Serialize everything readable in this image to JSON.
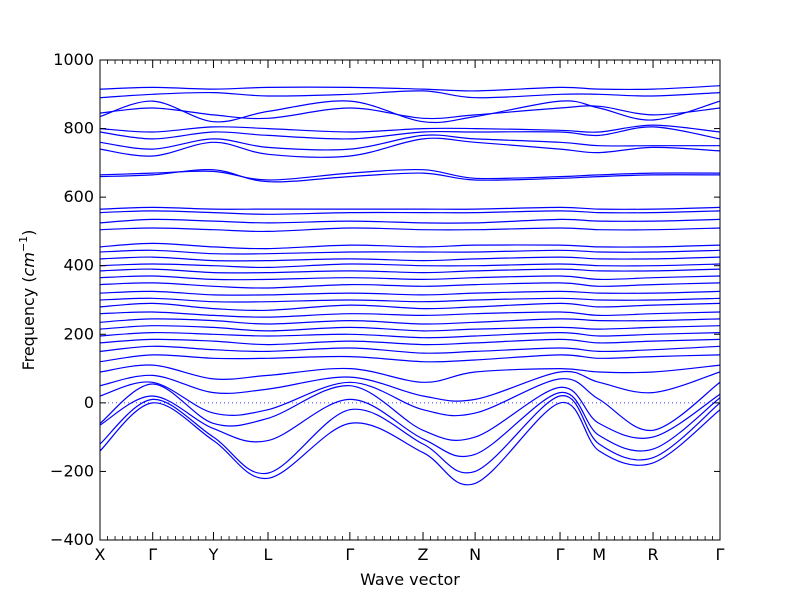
{
  "chart_data": {
    "type": "line",
    "title": "",
    "xlabel": "Wave vector",
    "ylabel_text": "Frequency (",
    "ylabel_unit_base": "cm",
    "ylabel_unit_exp": "−1",
    "ylabel_close": ")",
    "ylim": [
      -400,
      1000
    ],
    "yticks": [
      -400,
      -200,
      0,
      200,
      400,
      600,
      800,
      1000
    ],
    "x_range": [
      0,
      1
    ],
    "high_symmetry_points": [
      {
        "label": "X",
        "x": 0.0
      },
      {
        "label": "Γ",
        "x": 0.085
      },
      {
        "label": "Y",
        "x": 0.183
      },
      {
        "label": "L",
        "x": 0.271
      },
      {
        "label": "Γ",
        "x": 0.403
      },
      {
        "label": "Z",
        "x": 0.521
      },
      {
        "label": "N",
        "x": 0.605
      },
      {
        "label": "Γ",
        "x": 0.742
      },
      {
        "label": "M",
        "x": 0.805
      },
      {
        "label": "R",
        "x": 0.892
      },
      {
        "label": "Γ",
        "x": 1.0
      }
    ],
    "zero_line": {
      "value": 0,
      "style": "dotted"
    },
    "grid": false,
    "line_color": "#0000ff",
    "bands": [
      {
        "x": [
          0,
          0.085,
          0.183,
          0.271,
          0.403,
          0.521,
          0.605,
          0.742,
          0.805,
          0.892,
          1
        ],
        "y": [
          -140,
          0,
          -110,
          -220,
          -60,
          -145,
          -235,
          0,
          -140,
          -175,
          -20
        ]
      },
      {
        "x": [
          0,
          0.085,
          0.183,
          0.271,
          0.403,
          0.521,
          0.605,
          0.742,
          0.805,
          0.892,
          1
        ],
        "y": [
          -120,
          10,
          -100,
          -205,
          -20,
          -120,
          -200,
          20,
          -120,
          -160,
          0
        ]
      },
      {
        "x": [
          0,
          0.085,
          0.183,
          0.271,
          0.403,
          0.521,
          0.605,
          0.742,
          0.805,
          0.892,
          1
        ],
        "y": [
          -65,
          20,
          -75,
          -110,
          10,
          -105,
          -150,
          30,
          -95,
          -135,
          15
        ]
      },
      {
        "x": [
          0,
          0.085,
          0.183,
          0.271,
          0.403,
          0.521,
          0.605,
          0.742,
          0.805,
          0.892,
          1
        ],
        "y": [
          -60,
          55,
          -60,
          -45,
          50,
          -80,
          -100,
          45,
          -60,
          -100,
          25
        ]
      },
      {
        "x": [
          0,
          0.085,
          0.183,
          0.271,
          0.403,
          0.521,
          0.605,
          0.742,
          0.805,
          0.892,
          1
        ],
        "y": [
          20,
          60,
          -30,
          -20,
          60,
          -20,
          -30,
          70,
          10,
          -80,
          60
        ]
      },
      {
        "x": [
          0,
          0.085,
          0.183,
          0.271,
          0.403,
          0.521,
          0.605,
          0.742,
          0.805,
          0.892,
          1
        ],
        "y": [
          50,
          80,
          30,
          40,
          75,
          20,
          10,
          90,
          60,
          30,
          90
        ]
      },
      {
        "x": [
          0,
          0.085,
          0.183,
          0.271,
          0.403,
          0.521,
          0.605,
          0.742,
          0.805,
          0.892,
          1
        ],
        "y": [
          90,
          110,
          70,
          80,
          100,
          60,
          90,
          100,
          90,
          90,
          110
        ]
      },
      {
        "x": [
          0,
          0.085,
          0.183,
          0.271,
          0.403,
          0.521,
          0.605,
          0.742,
          0.805,
          0.892,
          1
        ],
        "y": [
          120,
          140,
          130,
          130,
          135,
          120,
          125,
          140,
          130,
          135,
          140
        ]
      },
      {
        "x": [
          0,
          0.085,
          0.183,
          0.271,
          0.403,
          0.521,
          0.605,
          0.742,
          0.805,
          0.892,
          1
        ],
        "y": [
          150,
          165,
          155,
          150,
          160,
          145,
          150,
          160,
          150,
          155,
          165
        ]
      },
      {
        "x": [
          0,
          0.085,
          0.183,
          0.271,
          0.403,
          0.521,
          0.605,
          0.742,
          0.805,
          0.892,
          1
        ],
        "y": [
          175,
          185,
          180,
          170,
          180,
          170,
          175,
          185,
          175,
          180,
          185
        ]
      },
      {
        "x": [
          0,
          0.085,
          0.183,
          0.271,
          0.403,
          0.521,
          0.605,
          0.742,
          0.805,
          0.892,
          1
        ],
        "y": [
          195,
          205,
          200,
          195,
          200,
          190,
          195,
          205,
          195,
          200,
          205
        ]
      },
      {
        "x": [
          0,
          0.085,
          0.183,
          0.271,
          0.403,
          0.521,
          0.605,
          0.742,
          0.805,
          0.892,
          1
        ],
        "y": [
          215,
          225,
          220,
          210,
          220,
          210,
          215,
          220,
          215,
          220,
          225
        ]
      },
      {
        "x": [
          0,
          0.085,
          0.183,
          0.271,
          0.403,
          0.521,
          0.605,
          0.742,
          0.805,
          0.892,
          1
        ],
        "y": [
          235,
          245,
          240,
          230,
          240,
          230,
          235,
          245,
          240,
          240,
          245
        ]
      },
      {
        "x": [
          0,
          0.085,
          0.183,
          0.271,
          0.403,
          0.521,
          0.605,
          0.742,
          0.805,
          0.892,
          1
        ],
        "y": [
          260,
          265,
          255,
          250,
          260,
          255,
          260,
          265,
          255,
          260,
          265
        ]
      },
      {
        "x": [
          0,
          0.085,
          0.183,
          0.271,
          0.403,
          0.521,
          0.605,
          0.742,
          0.805,
          0.892,
          1
        ],
        "y": [
          280,
          290,
          275,
          270,
          285,
          275,
          280,
          290,
          280,
          285,
          290
        ]
      },
      {
        "x": [
          0,
          0.085,
          0.183,
          0.271,
          0.403,
          0.521,
          0.605,
          0.742,
          0.805,
          0.892,
          1
        ],
        "y": [
          300,
          305,
          295,
          295,
          300,
          295,
          300,
          305,
          300,
          300,
          305
        ]
      },
      {
        "x": [
          0,
          0.085,
          0.183,
          0.271,
          0.403,
          0.521,
          0.605,
          0.742,
          0.805,
          0.892,
          1
        ],
        "y": [
          320,
          325,
          315,
          315,
          320,
          315,
          320,
          325,
          320,
          320,
          325
        ]
      },
      {
        "x": [
          0,
          0.085,
          0.183,
          0.271,
          0.403,
          0.521,
          0.605,
          0.742,
          0.805,
          0.892,
          1
        ],
        "y": [
          345,
          350,
          340,
          335,
          345,
          340,
          345,
          350,
          340,
          345,
          350
        ]
      },
      {
        "x": [
          0,
          0.085,
          0.183,
          0.271,
          0.403,
          0.521,
          0.605,
          0.742,
          0.805,
          0.892,
          1
        ],
        "y": [
          365,
          370,
          360,
          360,
          365,
          360,
          365,
          370,
          360,
          365,
          370
        ]
      },
      {
        "x": [
          0,
          0.085,
          0.183,
          0.271,
          0.403,
          0.521,
          0.605,
          0.742,
          0.805,
          0.892,
          1
        ],
        "y": [
          385,
          390,
          380,
          380,
          385,
          380,
          385,
          390,
          385,
          385,
          390
        ]
      },
      {
        "x": [
          0,
          0.085,
          0.183,
          0.271,
          0.403,
          0.521,
          0.605,
          0.742,
          0.805,
          0.892,
          1
        ],
        "y": [
          400,
          405,
          400,
          395,
          405,
          400,
          400,
          405,
          400,
          400,
          405
        ]
      },
      {
        "x": [
          0,
          0.085,
          0.183,
          0.271,
          0.403,
          0.521,
          0.605,
          0.742,
          0.805,
          0.892,
          1
        ],
        "y": [
          420,
          425,
          415,
          415,
          420,
          415,
          420,
          425,
          420,
          420,
          425
        ]
      },
      {
        "x": [
          0,
          0.085,
          0.183,
          0.271,
          0.403,
          0.521,
          0.605,
          0.742,
          0.805,
          0.892,
          1
        ],
        "y": [
          440,
          445,
          435,
          435,
          440,
          440,
          440,
          445,
          440,
          440,
          445
        ]
      },
      {
        "x": [
          0,
          0.085,
          0.183,
          0.271,
          0.403,
          0.521,
          0.605,
          0.742,
          0.805,
          0.892,
          1
        ],
        "y": [
          455,
          465,
          455,
          450,
          460,
          455,
          460,
          460,
          455,
          455,
          460
        ]
      },
      {
        "x": [
          0,
          0.085,
          0.183,
          0.271,
          0.403,
          0.521,
          0.605,
          0.742,
          0.805,
          0.892,
          1
        ],
        "y": [
          505,
          510,
          505,
          500,
          510,
          505,
          505,
          510,
          505,
          505,
          510
        ]
      },
      {
        "x": [
          0,
          0.085,
          0.183,
          0.271,
          0.403,
          0.521,
          0.605,
          0.742,
          0.805,
          0.892,
          1
        ],
        "y": [
          525,
          535,
          530,
          525,
          530,
          525,
          525,
          535,
          530,
          530,
          535
        ]
      },
      {
        "x": [
          0,
          0.085,
          0.183,
          0.271,
          0.403,
          0.521,
          0.605,
          0.742,
          0.805,
          0.892,
          1
        ],
        "y": [
          555,
          560,
          555,
          550,
          555,
          555,
          555,
          560,
          555,
          555,
          560
        ]
      },
      {
        "x": [
          0,
          0.085,
          0.183,
          0.271,
          0.403,
          0.521,
          0.605,
          0.742,
          0.805,
          0.892,
          1
        ],
        "y": [
          565,
          570,
          565,
          565,
          565,
          565,
          565,
          570,
          565,
          565,
          570
        ]
      },
      {
        "x": [
          0,
          0.085,
          0.183,
          0.271,
          0.403,
          0.521,
          0.605,
          0.742,
          0.805,
          0.892,
          1
        ],
        "y": [
          660,
          665,
          680,
          645,
          660,
          670,
          650,
          655,
          660,
          665,
          665
        ]
      },
      {
        "x": [
          0,
          0.085,
          0.183,
          0.271,
          0.403,
          0.521,
          0.605,
          0.742,
          0.805,
          0.892,
          1
        ],
        "y": [
          665,
          670,
          675,
          650,
          670,
          680,
          655,
          660,
          665,
          670,
          670
        ]
      },
      {
        "x": [
          0,
          0.085,
          0.183,
          0.271,
          0.403,
          0.521,
          0.605,
          0.742,
          0.805,
          0.892,
          1
        ],
        "y": [
          740,
          720,
          760,
          725,
          720,
          770,
          760,
          740,
          730,
          745,
          735
        ]
      },
      {
        "x": [
          0,
          0.085,
          0.183,
          0.271,
          0.403,
          0.521,
          0.605,
          0.742,
          0.805,
          0.892,
          1
        ],
        "y": [
          760,
          740,
          770,
          745,
          740,
          780,
          770,
          760,
          750,
          750,
          750
        ]
      },
      {
        "x": [
          0,
          0.085,
          0.183,
          0.271,
          0.403,
          0.521,
          0.605,
          0.742,
          0.805,
          0.892,
          1
        ],
        "y": [
          790,
          770,
          790,
          780,
          770,
          790,
          790,
          790,
          780,
          805,
          770
        ]
      },
      {
        "x": [
          0,
          0.085,
          0.183,
          0.271,
          0.403,
          0.521,
          0.605,
          0.742,
          0.805,
          0.892,
          1
        ],
        "y": [
          800,
          790,
          805,
          800,
          790,
          800,
          800,
          795,
          790,
          810,
          790
        ]
      },
      {
        "x": [
          0,
          0.085,
          0.183,
          0.271,
          0.403,
          0.521,
          0.605,
          0.742,
          0.805,
          0.892,
          1
        ],
        "y": [
          835,
          880,
          820,
          850,
          880,
          820,
          835,
          880,
          860,
          825,
          880
        ]
      },
      {
        "x": [
          0,
          0.085,
          0.183,
          0.271,
          0.403,
          0.521,
          0.605,
          0.742,
          0.805,
          0.892,
          1
        ],
        "y": [
          845,
          860,
          840,
          830,
          860,
          830,
          840,
          860,
          865,
          840,
          860
        ]
      },
      {
        "x": [
          0,
          0.085,
          0.183,
          0.271,
          0.403,
          0.521,
          0.605,
          0.742,
          0.805,
          0.892,
          1
        ],
        "y": [
          890,
          900,
          905,
          895,
          900,
          910,
          890,
          900,
          900,
          895,
          905
        ]
      },
      {
        "x": [
          0,
          0.085,
          0.183,
          0.271,
          0.403,
          0.521,
          0.605,
          0.742,
          0.805,
          0.892,
          1
        ],
        "y": [
          915,
          920,
          915,
          920,
          920,
          915,
          910,
          920,
          915,
          915,
          925
        ]
      }
    ]
  }
}
